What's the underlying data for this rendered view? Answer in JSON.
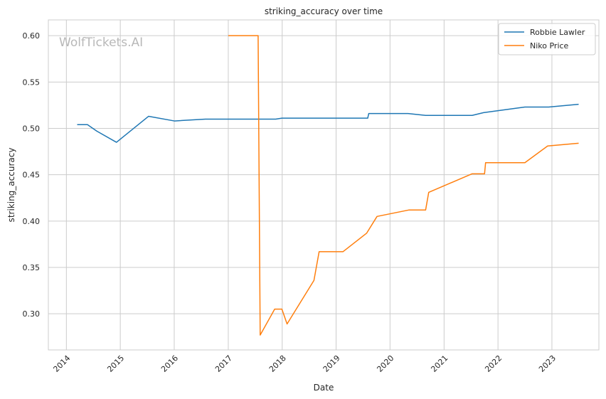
{
  "chart_data": {
    "type": "line",
    "title": "striking_accuracy over time",
    "xlabel": "Date",
    "ylabel": "striking_accuracy",
    "x_ticks": [
      "2014",
      "2015",
      "2016",
      "2017",
      "2018",
      "2019",
      "2020",
      "2021",
      "2022",
      "2023"
    ],
    "y_ticks": [
      "0.30",
      "0.35",
      "0.40",
      "0.45",
      "0.50",
      "0.55",
      "0.60"
    ],
    "xlim": [
      "2013-09-01",
      "2023-11-15"
    ],
    "ylim": [
      0.261,
      0.617
    ],
    "grid": true,
    "legend_position": "top-right",
    "watermark": "WolfTickets.AI",
    "series": [
      {
        "name": "Robbie Lawler",
        "color": "#1f77b4",
        "points": [
          [
            "2014-03-15",
            0.504
          ],
          [
            "2014-05-24",
            0.504
          ],
          [
            "2014-07-26",
            0.497
          ],
          [
            "2014-12-06",
            0.485
          ],
          [
            "2015-07-11",
            0.513
          ],
          [
            "2016-01-02",
            0.508
          ],
          [
            "2016-07-30",
            0.51
          ],
          [
            "2017-07-29",
            0.51
          ],
          [
            "2017-11-18",
            0.51
          ],
          [
            "2017-12-30",
            0.511
          ],
          [
            "2018-08-25",
            0.511
          ],
          [
            "2019-08-03",
            0.511
          ],
          [
            "2019-08-10",
            0.516
          ],
          [
            "2020-05-02",
            0.516
          ],
          [
            "2020-08-29",
            0.514
          ],
          [
            "2021-07-10",
            0.514
          ],
          [
            "2021-09-25",
            0.517
          ],
          [
            "2022-07-02",
            0.523
          ],
          [
            "2022-12-10",
            0.523
          ],
          [
            "2023-07-01",
            0.526
          ]
        ]
      },
      {
        "name": "Niko Price",
        "color": "#ff7f0e",
        "points": [
          [
            "2017-01-01",
            0.6
          ],
          [
            "2017-07-22",
            0.6
          ],
          [
            "2017-08-05",
            0.277
          ],
          [
            "2017-11-11",
            0.305
          ],
          [
            "2017-12-30",
            0.305
          ],
          [
            "2018-02-03",
            0.289
          ],
          [
            "2018-08-04",
            0.336
          ],
          [
            "2018-09-08",
            0.367
          ],
          [
            "2019-02-17",
            0.367
          ],
          [
            "2019-07-27",
            0.387
          ],
          [
            "2019-10-05",
            0.405
          ],
          [
            "2020-05-09",
            0.412
          ],
          [
            "2020-08-29",
            0.412
          ],
          [
            "2020-09-19",
            0.431
          ],
          [
            "2021-07-10",
            0.451
          ],
          [
            "2021-10-02",
            0.451
          ],
          [
            "2021-10-09",
            0.463
          ],
          [
            "2022-07-02",
            0.463
          ],
          [
            "2022-12-03",
            0.481
          ],
          [
            "2023-07-01",
            0.484
          ]
        ]
      }
    ]
  }
}
